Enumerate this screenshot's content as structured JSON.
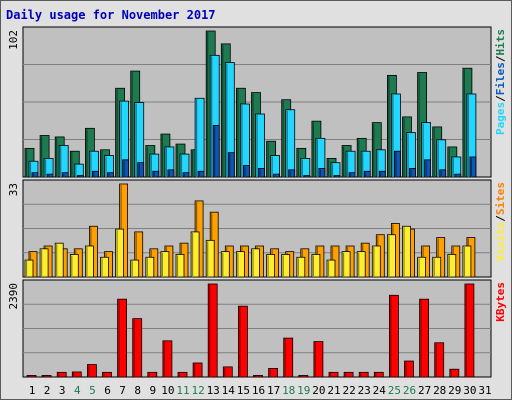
{
  "chart_data": {
    "type": "bar",
    "title": "Daily usage for November 2017",
    "categories": [
      "1",
      "2",
      "3",
      "4",
      "5",
      "6",
      "7",
      "8",
      "9",
      "10",
      "11",
      "12",
      "13",
      "14",
      "15",
      "16",
      "17",
      "18",
      "19",
      "20",
      "21",
      "22",
      "23",
      "24",
      "25",
      "26",
      "27",
      "28",
      "29",
      "30",
      "31"
    ],
    "weekend_days": [
      "4",
      "5",
      "11",
      "12",
      "18",
      "19",
      "25",
      "26"
    ],
    "colors": {
      "hits": "#1e7a50",
      "files": "#22d6ff",
      "pages": "#0c56b8",
      "visits": "#ffa000",
      "sites": "#ffee30",
      "kbytes": "#ff0000",
      "weekday_label": "#000000",
      "weekend_label": "#1e7a50",
      "plot_background": "#c0c0c0",
      "gridline": "#808080"
    },
    "panels": [
      {
        "name": "Hits/Files/Pages",
        "ymax_label": "102",
        "ymax": 102,
        "legend_words": [
          {
            "text": "Hits",
            "color": "#1e7a50"
          },
          {
            "text": "Files",
            "color": "#0c56b8"
          },
          {
            "text": "Pages",
            "color": "#22d6ff"
          }
        ],
        "series": [
          {
            "key": "hits",
            "values": [
              20,
              29,
              28,
              18,
              34,
              19,
              62,
              74,
              22,
              30,
              23,
              19,
              102,
              93,
              62,
              59,
              25,
              54,
              20,
              39,
              13,
              22,
              27,
              38,
              71,
              42,
              73,
              35,
              21,
              76
            ]
          },
          {
            "key": "files",
            "values": [
              11,
              13,
              22,
              9,
              18,
              15,
              53,
              52,
              16,
              21,
              16,
              55,
              85,
              80,
              51,
              44,
              15,
              47,
              13,
              27,
              10,
              18,
              18,
              19,
              58,
              31,
              38,
              26,
              14,
              58
            ]
          },
          {
            "key": "pages",
            "values": [
              3,
              2,
              3,
              1,
              4,
              3,
              12,
              10,
              4,
              5,
              3,
              4,
              36,
              17,
              8,
              6,
              2,
              5,
              1,
              6,
              1,
              3,
              4,
              4,
              18,
              6,
              12,
              5,
              2,
              14
            ]
          }
        ]
      },
      {
        "name": "Visits/Sites",
        "ymax_label": "33",
        "ymax": 33,
        "legend_words": [
          {
            "text": "Sites",
            "color": "#ff8000"
          },
          {
            "text": "Visits",
            "color": "#ffee30"
          }
        ],
        "series": [
          {
            "key": "sites",
            "values": [
              6,
              10,
              12,
              8,
              11,
              7,
              17,
              6,
              7,
              9,
              8,
              16,
              13,
              9,
              9,
              10,
              8,
              8,
              7,
              8,
              6,
              9,
              9,
              11,
              15,
              18,
              7,
              7,
              8,
              11
            ]
          },
          {
            "key": "visits",
            "values": [
              9,
              11,
              10,
              10,
              18,
              9,
              33,
              16,
              10,
              11,
              12,
              27,
              23,
              11,
              11,
              11,
              10,
              9,
              10,
              11,
              11,
              11,
              12,
              15,
              19,
              17,
              11,
              14,
              11,
              14
            ]
          }
        ]
      },
      {
        "name": "KBytes",
        "ymax_label": "2390",
        "ymax": 2390,
        "legend_words": [
          {
            "text": "KBytes",
            "color": "#ff0000"
          }
        ],
        "series": [
          {
            "key": "kbytes",
            "values": [
              40,
              40,
              120,
              130,
              320,
              120,
              2000,
              1500,
              120,
              930,
              120,
              360,
              2390,
              260,
              1820,
              40,
              220,
              1000,
              40,
              910,
              120,
              120,
              120,
              120,
              2100,
              410,
              2000,
              880,
              200,
              2390
            ]
          }
        ]
      }
    ]
  }
}
